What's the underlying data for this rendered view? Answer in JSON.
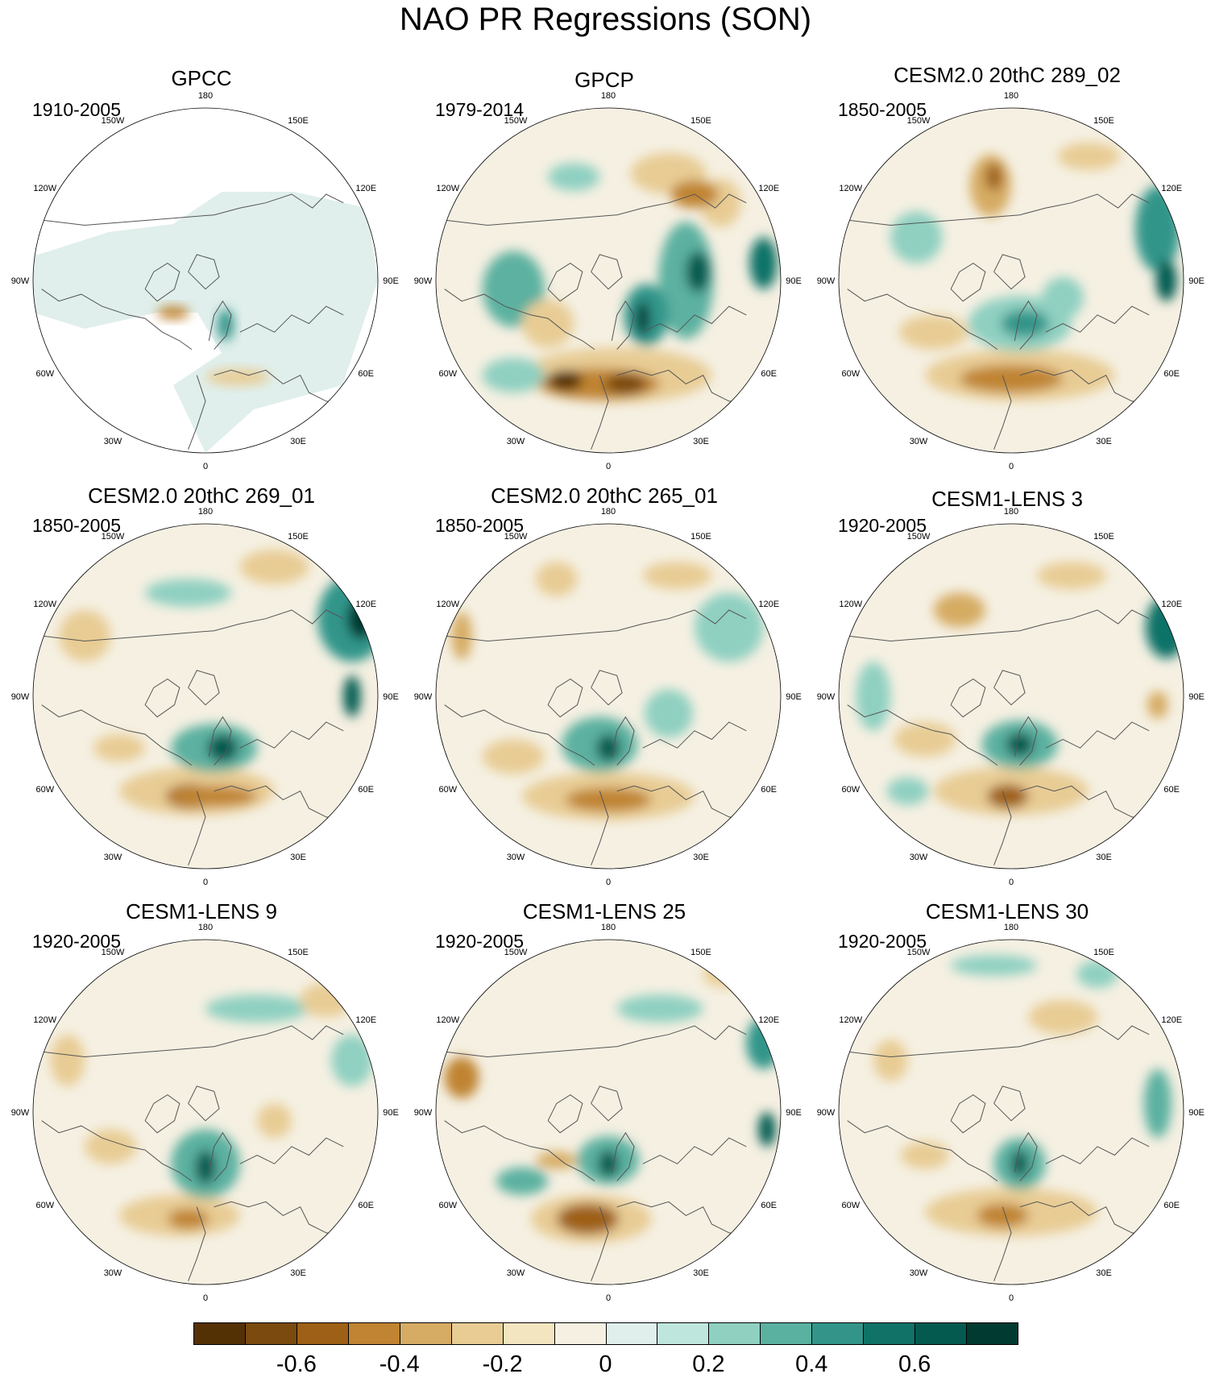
{
  "title": "NAO PR Regressions (SON)",
  "panels": [
    {
      "title": "GPCC",
      "period": "1910-2005",
      "mode": "land"
    },
    {
      "title": "GPCP",
      "period": "1979-2014",
      "mode": "full"
    },
    {
      "title": "CESM2.0 20thC 289_02",
      "period": "1850-2005",
      "mode": "full"
    },
    {
      "title": "CESM2.0 20thC 269_01",
      "period": "1850-2005",
      "mode": "full"
    },
    {
      "title": "CESM2.0 20thC 265_01",
      "period": "1850-2005",
      "mode": "full"
    },
    {
      "title": "CESM1-LENS 3",
      "period": "1920-2005",
      "mode": "full"
    },
    {
      "title": "CESM1-LENS 9",
      "period": "1920-2005",
      "mode": "full"
    },
    {
      "title": "CESM1-LENS 25",
      "period": "1920-2005",
      "mode": "full"
    },
    {
      "title": "CESM1-LENS 30",
      "period": "1920-2005",
      "mode": "full"
    }
  ],
  "lon_labels": [
    "180",
    "150E",
    "120E",
    "90E",
    "60E",
    "30E",
    "0",
    "30W",
    "60W",
    "90W",
    "120W",
    "150W"
  ],
  "colorbar": {
    "colors": [
      "#543005",
      "#7a4a0e",
      "#9e6016",
      "#c08432",
      "#d6ac64",
      "#e8cc94",
      "#f4e5c1",
      "#f5f0e2",
      "#e0efec",
      "#bfe6dd",
      "#8fd0c1",
      "#5bb1a0",
      "#33958a",
      "#117268",
      "#045a4f",
      "#013a30"
    ],
    "tick_labels": [
      "-0.6",
      "-0.4",
      "-0.2",
      "0",
      "0.2",
      "0.4",
      "0.6"
    ],
    "tick_values": [
      -0.6,
      -0.4,
      -0.2,
      0,
      0.2,
      0.4,
      0.6
    ],
    "min": -0.8,
    "max": 0.8
  }
}
